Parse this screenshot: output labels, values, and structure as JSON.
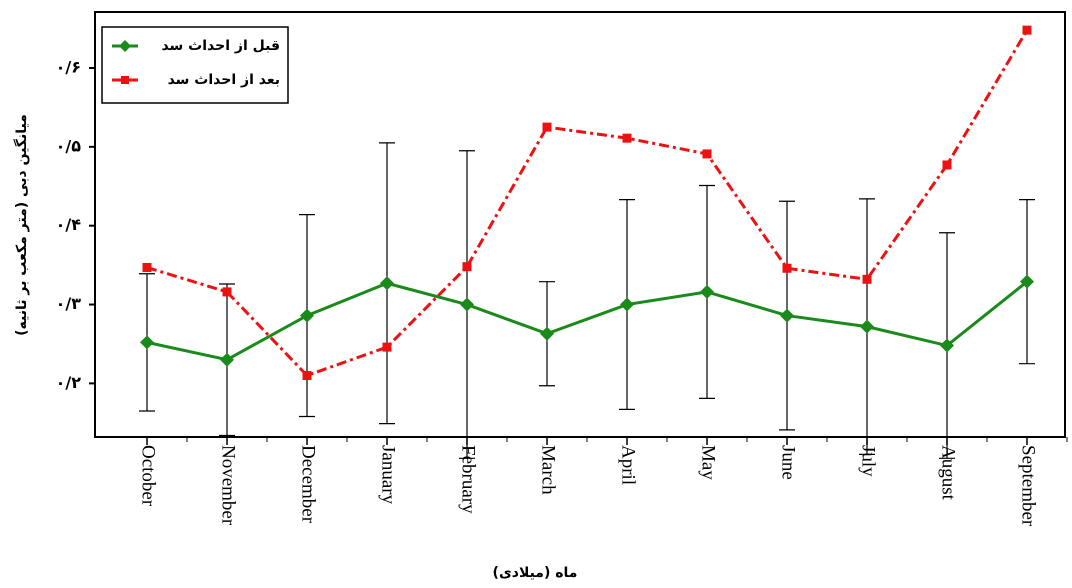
{
  "chart_data": {
    "type": "line",
    "x_label": "ماه (میلادی)",
    "y_label": "میانگین دبی (متر مکعب بر ثانیه)",
    "categories": [
      "October",
      "November",
      "December",
      "January",
      "February",
      "March",
      "April",
      "May",
      "June",
      "July",
      "August",
      "September"
    ],
    "series": [
      {
        "name": "قبل از احداث سد",
        "color": "#1a8a1a",
        "marker": "diamond",
        "values": [
          0.252,
          0.23,
          0.286,
          0.327,
          0.3,
          0.263,
          0.3,
          0.316,
          0.286,
          0.272,
          0.248,
          0.329
        ],
        "errors": [
          0.087,
          0.096,
          0.128,
          0.178,
          0.195,
          0.066,
          0.133,
          0.135,
          0.145,
          0.162,
          0.143,
          0.104
        ]
      },
      {
        "name": "بعد از احداث سد",
        "color": "#ee1111",
        "marker": "square",
        "values": [
          0.347,
          0.316,
          0.21,
          0.246,
          0.348,
          0.525,
          0.511,
          0.491,
          0.346,
          0.332,
          0.477,
          0.648
        ]
      }
    ],
    "ylim": [
      0.132,
      0.671
    ],
    "yticks": [
      {
        "value": 0.2,
        "label": "۰/۲"
      },
      {
        "value": 0.3,
        "label": "۰/۳"
      },
      {
        "value": 0.4,
        "label": "۰/۴"
      },
      {
        "value": 0.5,
        "label": "۰/۵"
      },
      {
        "value": 0.6,
        "label": "۰/۶"
      }
    ],
    "legend": "top-left"
  }
}
